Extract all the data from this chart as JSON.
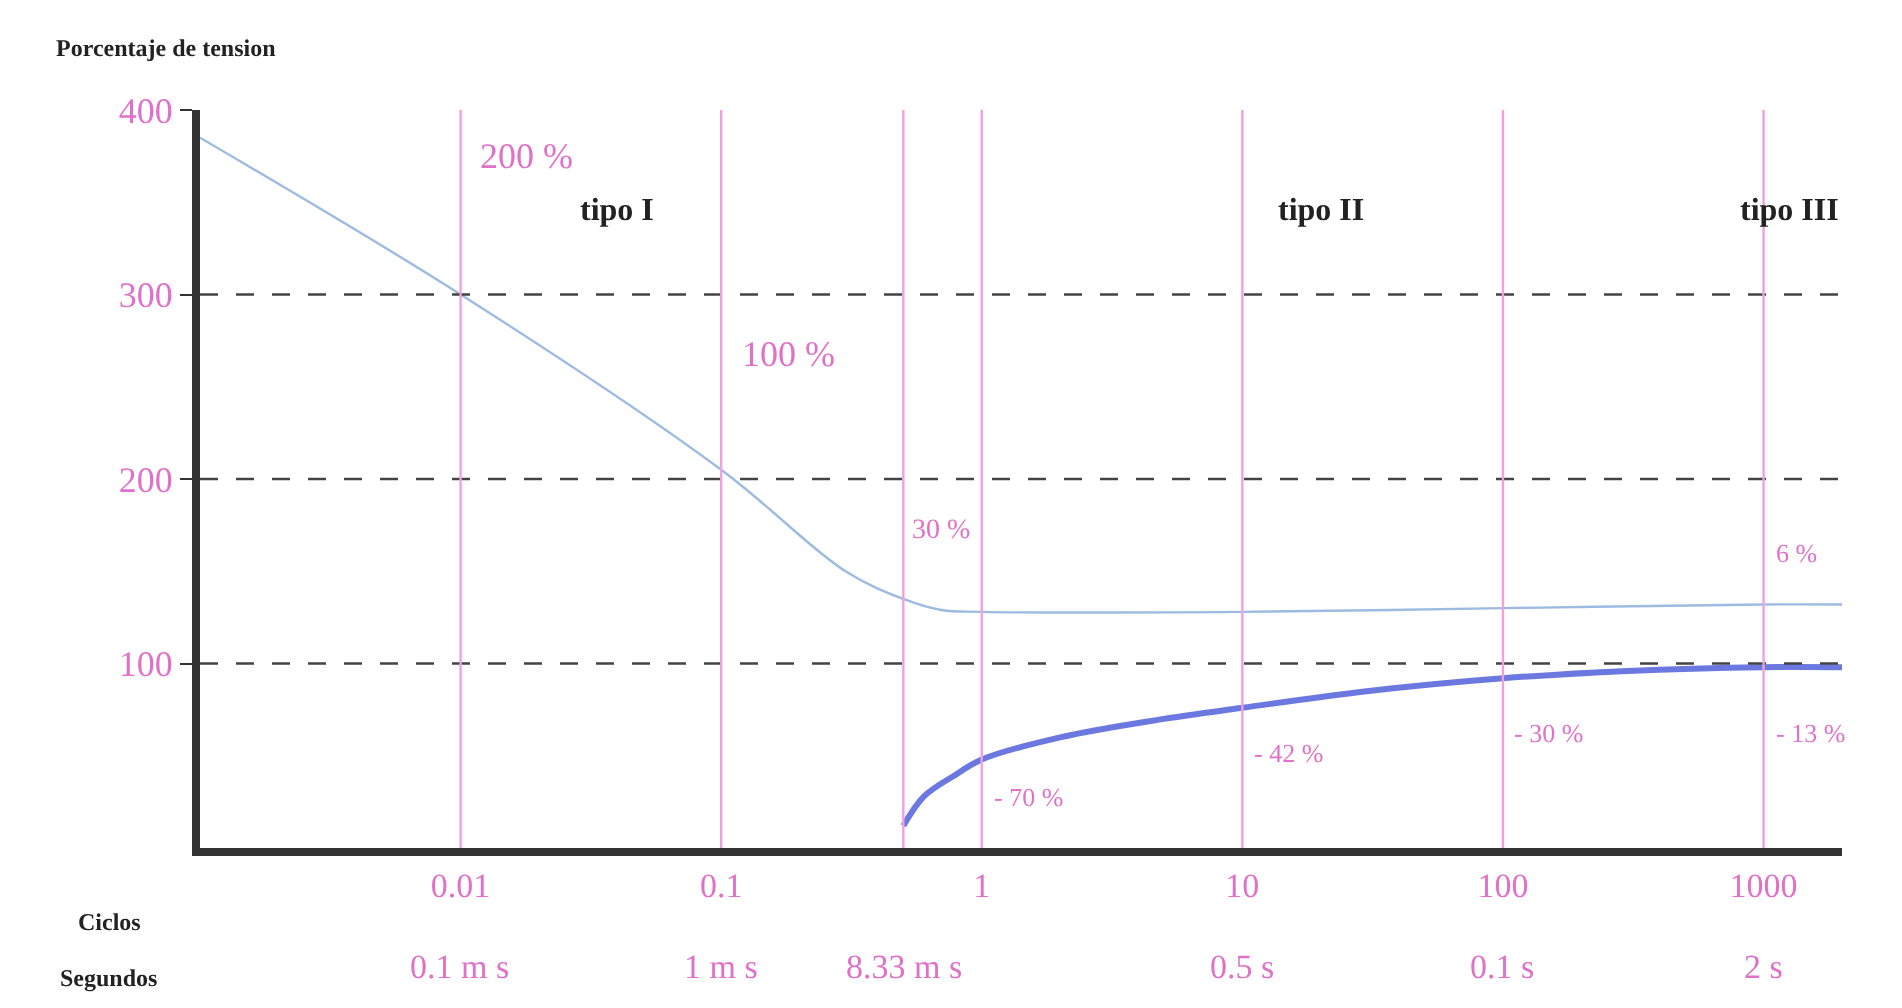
{
  "chart_data": {
    "type": "line",
    "ylabel": "Porcentaje de tension",
    "log": "x",
    "marker": "none",
    "line_style": "solid",
    "xlim": [
      0.001,
      2000
    ],
    "ylim": [
      0,
      400
    ],
    "xticks": [
      0.01,
      0.1,
      1,
      10,
      100,
      1000
    ],
    "yticks": [
      100,
      200,
      300,
      400
    ],
    "series": [
      {
        "color": "#9dbbe0",
        "x": [
          0.001,
          0.01,
          0.1,
          0.3,
          0.5,
          0.7,
          1,
          10,
          100,
          1000,
          2000
        ],
        "values": [
          385,
          300,
          205,
          150,
          135,
          129,
          128,
          128,
          130,
          132,
          132
        ]
      },
      {
        "color": "#6b78e0",
        "x": [
          0.5,
          0.6,
          0.8,
          1,
          2,
          5,
          10,
          30,
          100,
          300,
          1000,
          2000
        ],
        "values": [
          12,
          28,
          40,
          48,
          60,
          70,
          76,
          85,
          92,
          96,
          98,
          98
        ]
      }
    ],
    "ref_lines": [
      {
        "axis": "y",
        "value": 100,
        "color": "#444444",
        "line_style": "dashed"
      },
      {
        "axis": "y",
        "value": 200,
        "color": "#444444",
        "line_style": "dashed"
      },
      {
        "axis": "y",
        "value": 300,
        "color": "#444444",
        "line_style": "dashed"
      },
      {
        "axis": "x",
        "value": 0.01,
        "color": "#f0a0e0",
        "line_style": "solid"
      },
      {
        "axis": "x",
        "value": 0.1,
        "color": "#f0a0e0",
        "line_style": "solid"
      },
      {
        "axis": "x",
        "value": 0.5,
        "color": "#f0a0e0",
        "line_style": "solid"
      },
      {
        "axis": "x",
        "value": 1,
        "color": "#f0a0e0",
        "line_style": "solid"
      },
      {
        "axis": "x",
        "value": 10,
        "color": "#f0a0e0",
        "line_style": "solid"
      },
      {
        "axis": "x",
        "value": 100,
        "color": "#f0a0e0",
        "line_style": "solid"
      },
      {
        "axis": "x",
        "value": 1000,
        "color": "#f0a0e0",
        "line_style": "solid"
      }
    ],
    "annotations": [
      "200 %",
      "100 %",
      "30 %",
      "6 %",
      "- 70 %",
      "- 42 %",
      "- 30 %",
      "- 13 %",
      "tipo I",
      "tipo II",
      "tipo III",
      "Ciclos",
      "Segundos",
      "0.1 m s",
      "1 m s",
      "8.33 m s",
      "0.5 s",
      "0.1 s",
      "2 s"
    ]
  }
}
